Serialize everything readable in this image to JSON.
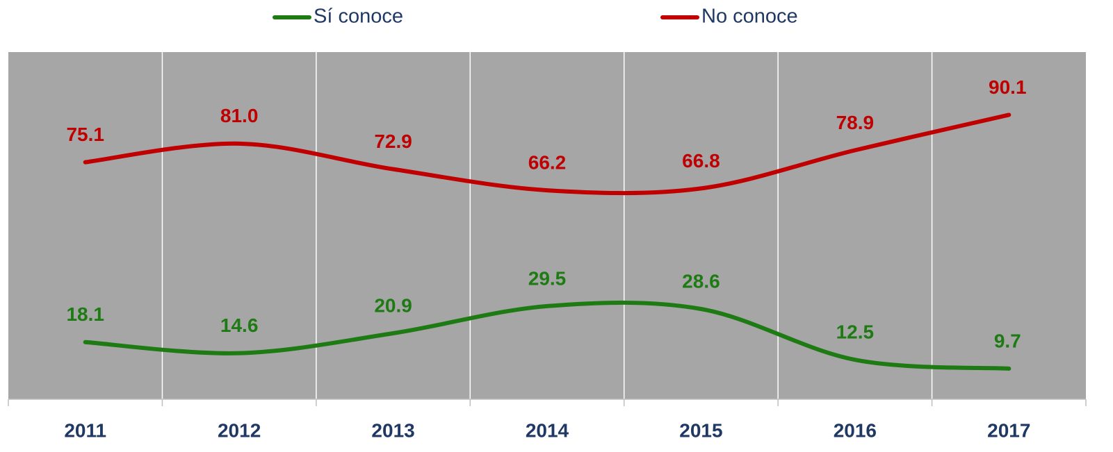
{
  "chart_data": {
    "type": "line",
    "categories": [
      "2011",
      "2012",
      "2013",
      "2014",
      "2015",
      "2016",
      "2017"
    ],
    "series": [
      {
        "name": "Sí conoce",
        "color": "#1e7b14",
        "values": [
          18.1,
          14.6,
          20.9,
          29.5,
          28.6,
          12.5,
          9.7
        ]
      },
      {
        "name": "No conoce",
        "color": "#c00000",
        "values": [
          75.1,
          81.0,
          72.9,
          66.2,
          66.8,
          78.9,
          90.1
        ],
        "value_labels": [
          "75.1",
          "81.0",
          "72.9",
          "66.2",
          "66.8",
          "78.9",
          "90.1"
        ]
      }
    ],
    "ylim": [
      0,
      110
    ],
    "grid": true,
    "smooth": true,
    "legend": "top"
  }
}
